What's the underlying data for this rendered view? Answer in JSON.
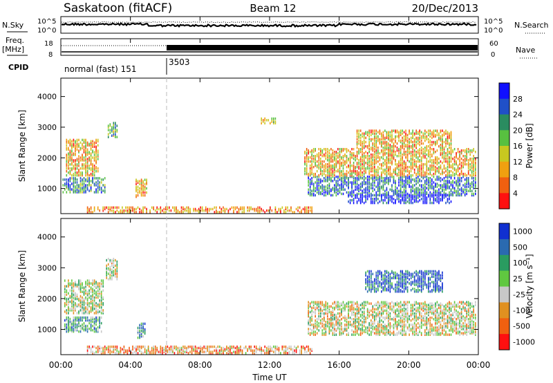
{
  "header": {
    "station": "Saskatoon (fitACF)",
    "beam": "Beam 12",
    "date": "20/Dec/2013"
  },
  "noise_panel": {
    "left_label": "N.Sky",
    "right_label": "N.Search",
    "y_ticks": [
      "10^5",
      "10^0"
    ]
  },
  "freq_panel": {
    "left_label_line1": "Freq.",
    "left_label_line2": "[MHz]",
    "left_ticks": [
      "18",
      "8"
    ],
    "right_label": "Nave",
    "right_ticks": [
      "60",
      "0"
    ]
  },
  "cpid": {
    "label": "CPID",
    "segments": [
      {
        "label": "normal (fast) 151",
        "start_hour": 0
      },
      {
        "label": "3503",
        "start_hour": 6
      }
    ]
  },
  "chart_data": [
    {
      "type": "heatmap",
      "name": "power-panel",
      "ylabel": "Slant Range [km]",
      "y_ticks": [
        1000,
        2000,
        3000,
        4000
      ],
      "ylim": [
        180,
        4600
      ],
      "xlim_hours": [
        0,
        24
      ],
      "colorbar": {
        "label": "Power [dB]",
        "ticks": [
          "4",
          "8",
          "12",
          "16",
          "20",
          "24",
          "28"
        ],
        "colors": [
          "#1010ff",
          "#2050c8",
          "#2a8c60",
          "#58c040",
          "#c8c820",
          "#f0a010",
          "#f06010",
          "#ff1010"
        ]
      },
      "regions": [
        {
          "t0": 0.1,
          "t1": 2.6,
          "r0": 850,
          "r1": 1350,
          "level": 0.7
        },
        {
          "t0": 0.3,
          "t1": 2.2,
          "r0": 1400,
          "r1": 2600,
          "level": 0.35
        },
        {
          "t0": 2.7,
          "t1": 3.3,
          "r0": 2650,
          "r1": 3150,
          "level": 0.6
        },
        {
          "t0": 4.3,
          "t1": 5.0,
          "r0": 700,
          "r1": 1300,
          "level": 0.3
        },
        {
          "t0": 1.5,
          "t1": 14.5,
          "r0": 200,
          "r1": 400,
          "level": 0.25
        },
        {
          "t0": 11.5,
          "t1": 12.4,
          "r0": 3100,
          "r1": 3300,
          "level": 0.4
        },
        {
          "t0": 14.2,
          "t1": 23.9,
          "r0": 750,
          "r1": 1400,
          "level": 0.75
        },
        {
          "t0": 14.0,
          "t1": 23.9,
          "r0": 1400,
          "r1": 2300,
          "level": 0.35
        },
        {
          "t0": 17.0,
          "t1": 22.5,
          "r0": 2300,
          "r1": 2900,
          "level": 0.35
        },
        {
          "t0": 16.5,
          "t1": 22.5,
          "r0": 500,
          "r1": 800,
          "level": 0.95
        }
      ]
    },
    {
      "type": "heatmap",
      "name": "velocity-panel",
      "ylabel": "Slant Range [km]",
      "xlabel": "Time UT",
      "x_ticks": [
        "00:00",
        "04:00",
        "08:00",
        "12:00",
        "16:00",
        "20:00",
        "00:00"
      ],
      "y_ticks": [
        1000,
        2000,
        3000,
        4000
      ],
      "ylim": [
        180,
        4600
      ],
      "xlim_hours": [
        0,
        24
      ],
      "colorbar": {
        "label": "Velocity [m s⁻¹]",
        "ticks": [
          "1000",
          "500",
          "100",
          "25",
          "-25",
          "-100",
          "-500",
          "-1000"
        ],
        "colors": [
          "#1030d0",
          "#2a6ab0",
          "#2a9c60",
          "#60c840",
          "#c8c8c8",
          "#e09020",
          "#f06010",
          "#ff1010"
        ]
      },
      "regions": [
        {
          "t0": 0.2,
          "t1": 2.4,
          "r0": 900,
          "r1": 1400,
          "level": 0.35
        },
        {
          "t0": 0.2,
          "t1": 2.5,
          "r0": 1500,
          "r1": 2600,
          "level": 0.5
        },
        {
          "t0": 2.6,
          "t1": 3.3,
          "r0": 2600,
          "r1": 3300,
          "level": 0.55
        },
        {
          "t0": 4.4,
          "t1": 4.9,
          "r0": 700,
          "r1": 1200,
          "level": 0.3
        },
        {
          "t0": 1.5,
          "t1": 14.5,
          "r0": 200,
          "r1": 450,
          "level": 0.7
        },
        {
          "t0": 14.2,
          "t1": 23.9,
          "r0": 800,
          "r1": 1900,
          "level": 0.55
        },
        {
          "t0": 17.5,
          "t1": 22.0,
          "r0": 2200,
          "r1": 2900,
          "level": 0.15
        }
      ]
    }
  ]
}
